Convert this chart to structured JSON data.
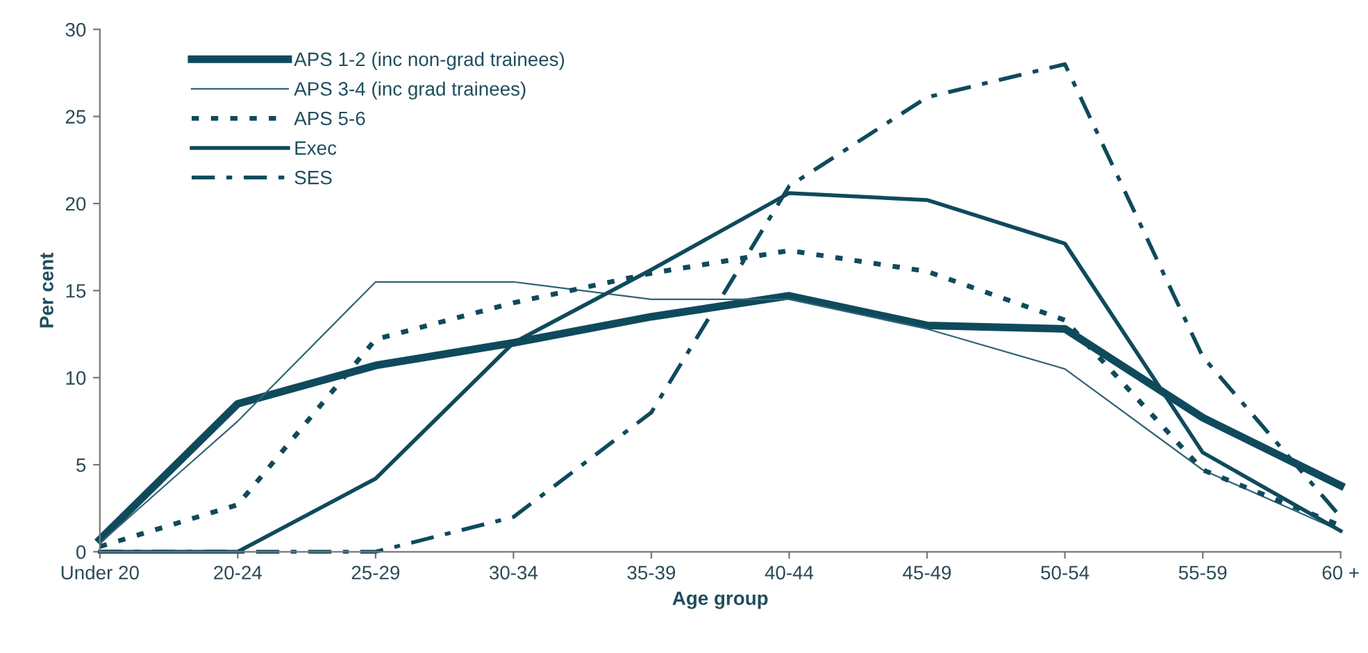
{
  "chart_data": {
    "type": "line",
    "xlabel": "Age group",
    "ylabel": "Per cent",
    "categories": [
      "Under 20",
      "20-24",
      "25-29",
      "30-34",
      "35-39",
      "40-44",
      "45-49",
      "50-54",
      "55-59",
      "60 +"
    ],
    "series": [
      {
        "name": "APS 1-2 (inc non-grad trainees)",
        "color": "#0f4a5c",
        "line_style": "solid",
        "values": [
          0.7,
          8.5,
          10.7,
          12.0,
          13.5,
          14.7,
          13.0,
          12.8,
          7.7,
          3.8
        ]
      },
      {
        "name": "APS 3-4 (inc grad trainees)",
        "color": "#2f6474",
        "line_style": "solid",
        "values": [
          0.5,
          7.5,
          15.5,
          15.5,
          14.5,
          14.5,
          12.8,
          10.5,
          4.7,
          1.2
        ]
      },
      {
        "name": "APS 5-6",
        "color": "#0f4a5c",
        "line_style": "dotted",
        "values": [
          0.3,
          2.7,
          12.2,
          14.3,
          16.0,
          17.3,
          16.1,
          13.3,
          4.7,
          1.5
        ]
      },
      {
        "name": "Exec",
        "color": "#0f4a5c",
        "line_style": "solid",
        "values": [
          0,
          0,
          4.2,
          12.0,
          16.2,
          20.6,
          20.2,
          17.7,
          5.7,
          1.2
        ]
      },
      {
        "name": "SES",
        "color": "#0f4a5c",
        "line_style": "dashed",
        "values": [
          0,
          0,
          0,
          2.0,
          8.0,
          21.0,
          26.1,
          28.0,
          11.2,
          2.0
        ]
      }
    ],
    "ylim": [
      0,
      30
    ],
    "yticks": [
      0,
      5,
      10,
      15,
      20,
      25,
      30
    ],
    "grid": false,
    "legend": "top left",
    "marker": "none"
  }
}
